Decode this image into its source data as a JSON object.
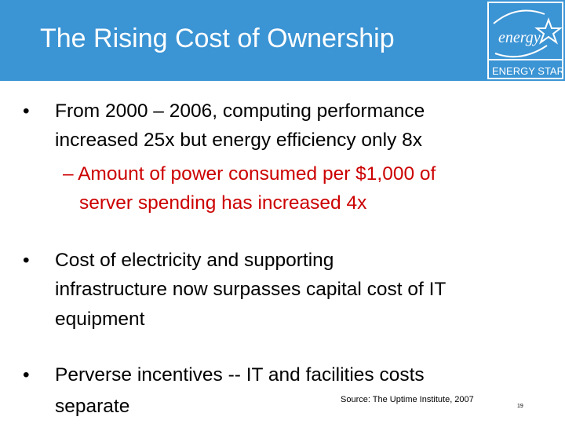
{
  "slide": {
    "title": "The Rising Cost of Ownership",
    "logo_text": "ENERGY STAR",
    "logo_script": "energy",
    "bullets": [
      {
        "lines": [
          "From 2000 – 2006, computing performance",
          "increased 25x but energy efficiency only 8x"
        ],
        "sub_lines": [
          "– Amount of power consumed per $1,000 of",
          "server spending has increased 4x"
        ]
      },
      {
        "lines": [
          "Cost of electricity and supporting",
          "infrastructure now surpasses capital cost of IT",
          "equipment"
        ]
      },
      {
        "lines": [
          "Perverse incentives -- IT and facilities costs",
          "separate"
        ]
      }
    ],
    "source": "Source: The Uptime Institute, 2007",
    "page_number": "19"
  },
  "colors": {
    "title_bar": "#3b94d4",
    "sub_bullet": "#cc0000"
  }
}
